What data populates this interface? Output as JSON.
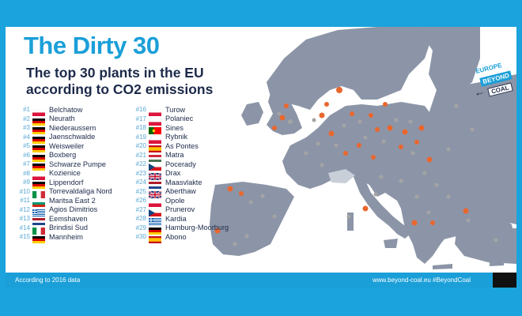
{
  "title": "The Dirty 30",
  "subtitle": "The top 30 plants in the EU according to CO2 emissions",
  "logo": {
    "line1": "EUROPE",
    "line2": "BEYOND",
    "line3": "COAL"
  },
  "colors": {
    "frame": "#1aa3dc",
    "title": "#1b9fd8",
    "text": "#1d2a4a",
    "land": "#8c95a7",
    "sea": "#ffffff",
    "switzerland": "#c9cfd9",
    "plant_marker": "#e9672f",
    "other_marker": "#a4a4a4"
  },
  "plants_left": [
    {
      "rank": "#1",
      "name": "Belchatow",
      "flag": "pl"
    },
    {
      "rank": "#2",
      "name": "Neurath",
      "flag": "de"
    },
    {
      "rank": "#3",
      "name": "Niederaussem",
      "flag": "de"
    },
    {
      "rank": "#4",
      "name": "Jaenschwalde",
      "flag": "de"
    },
    {
      "rank": "#5",
      "name": "Weisweiler",
      "flag": "de"
    },
    {
      "rank": "#6",
      "name": "Boxberg",
      "flag": "de"
    },
    {
      "rank": "#7",
      "name": "Schwarze Pumpe",
      "flag": "de"
    },
    {
      "rank": "#8",
      "name": "Kozienice",
      "flag": "pl"
    },
    {
      "rank": "#9",
      "name": "Lippendorf",
      "flag": "de"
    },
    {
      "rank": "#10",
      "name": "Torrevaldaliga Nord",
      "flag": "it"
    },
    {
      "rank": "#11",
      "name": "Maritsa East 2",
      "flag": "bg"
    },
    {
      "rank": "#12",
      "name": "Agios Dimitrios",
      "flag": "gr"
    },
    {
      "rank": "#13",
      "name": "Eemshaven",
      "flag": "nl"
    },
    {
      "rank": "#14",
      "name": "Brindisi Sud",
      "flag": "it"
    },
    {
      "rank": "#15",
      "name": "Mannheim",
      "flag": "de"
    }
  ],
  "plants_right": [
    {
      "rank": "#16",
      "name": "Turow",
      "flag": "pl"
    },
    {
      "rank": "#17",
      "name": "Polaniec",
      "flag": "pl"
    },
    {
      "rank": "#18",
      "name": "Sines",
      "flag": "pt"
    },
    {
      "rank": "#19",
      "name": "Rybnik",
      "flag": "pl"
    },
    {
      "rank": "#20",
      "name": "As Pontes",
      "flag": "es"
    },
    {
      "rank": "#21",
      "name": "Matra",
      "flag": "hu"
    },
    {
      "rank": "#22",
      "name": "Pocerady",
      "flag": "cz"
    },
    {
      "rank": "#23",
      "name": "Drax",
      "flag": "uk"
    },
    {
      "rank": "#24",
      "name": "Maasvlakte",
      "flag": "nl"
    },
    {
      "rank": "#25",
      "name": "Aberthaw",
      "flag": "uk"
    },
    {
      "rank": "#26",
      "name": "Opole",
      "flag": "pl"
    },
    {
      "rank": "#27",
      "name": "Prunerov",
      "flag": "cz"
    },
    {
      "rank": "#28",
      "name": "Kardia",
      "flag": "gr"
    },
    {
      "rank": "#29",
      "name": "Hamburg-Moorburg",
      "flag": "de"
    },
    {
      "rank": "#30",
      "name": "Abono",
      "flag": "es"
    }
  ],
  "footer": {
    "note": "According to 2016 data",
    "link": "www.beyond-coal.eu",
    "hashtag": "#BeyondCoal"
  }
}
